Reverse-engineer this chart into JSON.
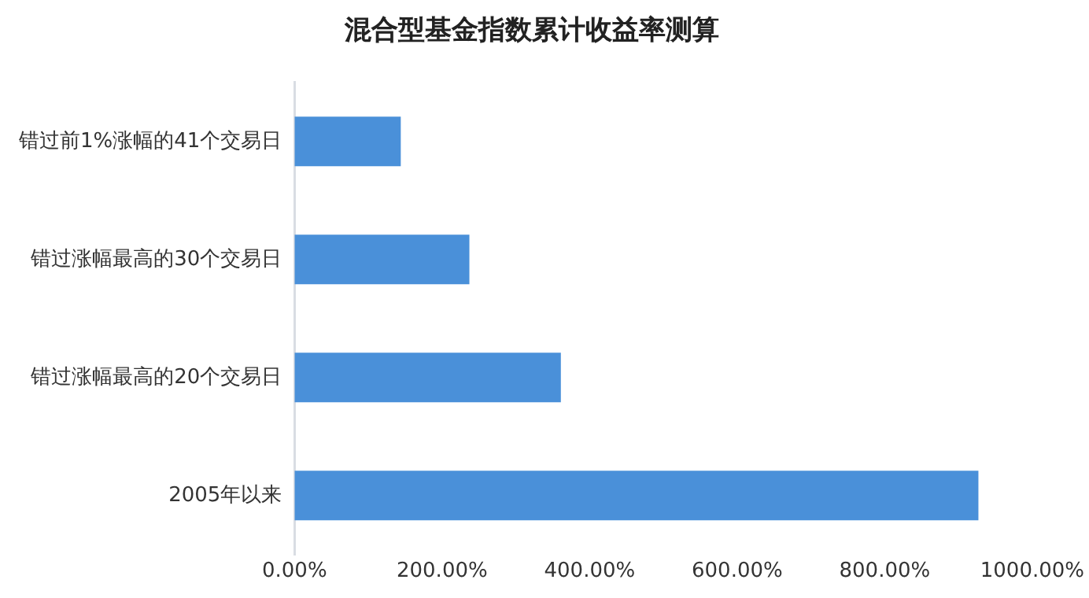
{
  "chart_data": {
    "type": "bar",
    "orientation": "horizontal",
    "title": "混合型基金指数累计收益率测算",
    "categories": [
      "错过前1%涨幅的41个交易日",
      "错过涨幅最高的30个交易日",
      "错过涨幅最高的20个交易日",
      "2005年以来"
    ],
    "values": [
      144,
      237,
      361,
      927
    ],
    "color": "#4a90d9",
    "xlim": [
      0,
      1000
    ],
    "xticks": [
      {
        "value": 0,
        "label": "0.00%"
      },
      {
        "value": 200,
        "label": "200.00%"
      },
      {
        "value": 400,
        "label": "400.00%"
      },
      {
        "value": 600,
        "label": "600.00%"
      },
      {
        "value": 800,
        "label": "800.00%"
      },
      {
        "value": 1000,
        "label": "1000.00%"
      }
    ],
    "grid": false,
    "legend": false
  }
}
